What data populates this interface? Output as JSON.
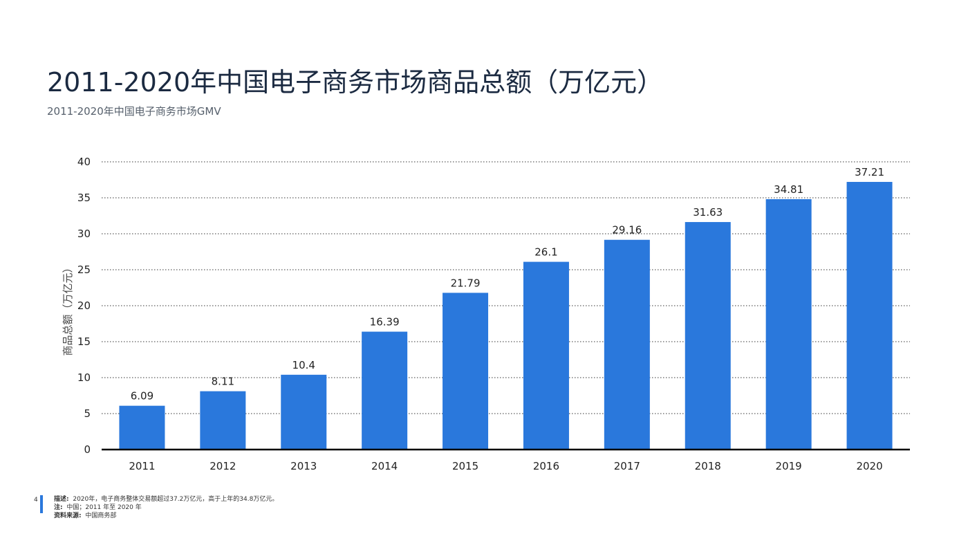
{
  "title": "2011-2020年中国电子商务市场商品总额（万亿元）",
  "subtitle": "2011-2020年中国电子商务市场GMV",
  "footer": {
    "page_number": "4",
    "description_label": "描述:",
    "description_text": "2020年，电子商务整体交易额超过37.2万亿元，高于上年的34.8万亿元。",
    "note_label": "注:",
    "note_text": "中国；2011 年至 2020 年",
    "source_label": "资料来源:",
    "source_text": "中国商务部"
  },
  "colors": {
    "bar": "#2a78dc",
    "axis": "#000000",
    "grid": "#333333"
  },
  "chart_data": {
    "type": "bar",
    "categories": [
      "2011",
      "2012",
      "2013",
      "2014",
      "2015",
      "2016",
      "2017",
      "2018",
      "2019",
      "2020"
    ],
    "values": [
      6.09,
      8.11,
      10.4,
      16.39,
      21.79,
      26.1,
      29.16,
      31.63,
      34.81,
      37.21
    ],
    "data_labels": [
      "6.09",
      "8.11",
      "10.4",
      "16.39",
      "21.79",
      "26.1",
      "29.16",
      "31.63",
      "34.81",
      "37.21"
    ],
    "ylabel": "商品总额（万亿元）",
    "xlabel": "",
    "ylim": [
      0,
      40
    ],
    "yticks": [
      0,
      5,
      10,
      15,
      20,
      25,
      30,
      35,
      40
    ],
    "grid": "dotted horizontal"
  }
}
